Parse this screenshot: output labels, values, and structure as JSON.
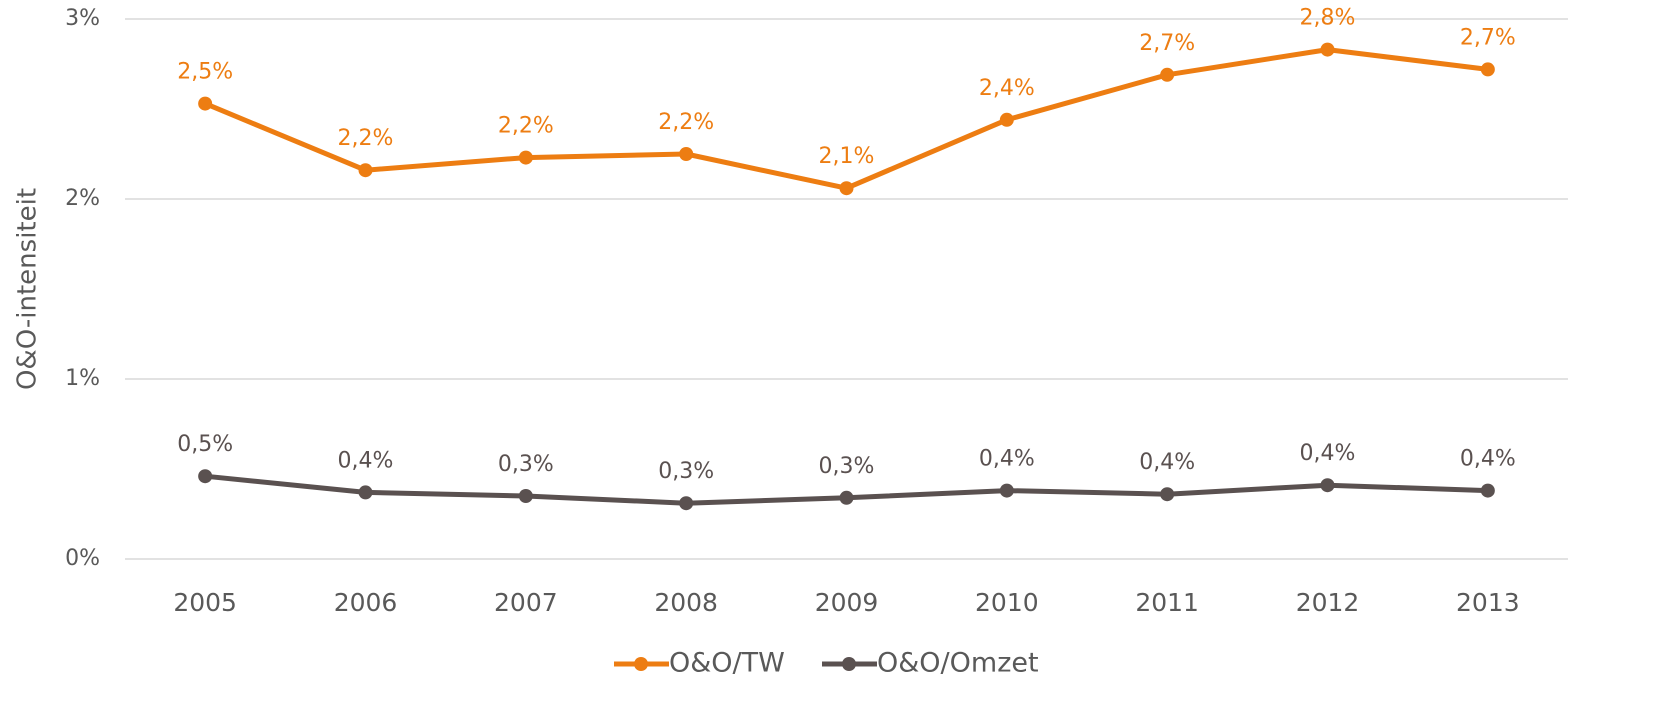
{
  "chart_data": {
    "type": "line",
    "y_label": "O&O-intensiteit",
    "categories": [
      "2005",
      "2006",
      "2007",
      "2008",
      "2009",
      "2010",
      "2011",
      "2012",
      "2013"
    ],
    "series": [
      {
        "name": "O&O/TW",
        "color": "#ed7d12",
        "values": [
          2.53,
          2.16,
          2.23,
          2.25,
          2.06,
          2.44,
          2.69,
          2.83,
          2.72
        ],
        "value_labels": [
          "2,5%",
          "2,2%",
          "2,2%",
          "2,2%",
          "2,1%",
          "2,4%",
          "2,7%",
          "2,8%",
          "2,7%"
        ]
      },
      {
        "name": "O&O/Omzet",
        "color": "#5a5150",
        "values": [
          0.46,
          0.37,
          0.35,
          0.31,
          0.34,
          0.38,
          0.36,
          0.41,
          0.38
        ],
        "value_labels": [
          "0,5%",
          "0,4%",
          "0,3%",
          "0,3%",
          "0,3%",
          "0,4%",
          "0,4%",
          "0,4%",
          "0,4%"
        ]
      }
    ],
    "ylim": [
      0,
      3
    ],
    "yticks": [
      {
        "value": 0,
        "label": "0%"
      },
      {
        "value": 1,
        "label": "1%"
      },
      {
        "value": 2,
        "label": "2%"
      },
      {
        "value": 3,
        "label": "3%"
      }
    ],
    "grid": true,
    "legend": "bottom"
  }
}
